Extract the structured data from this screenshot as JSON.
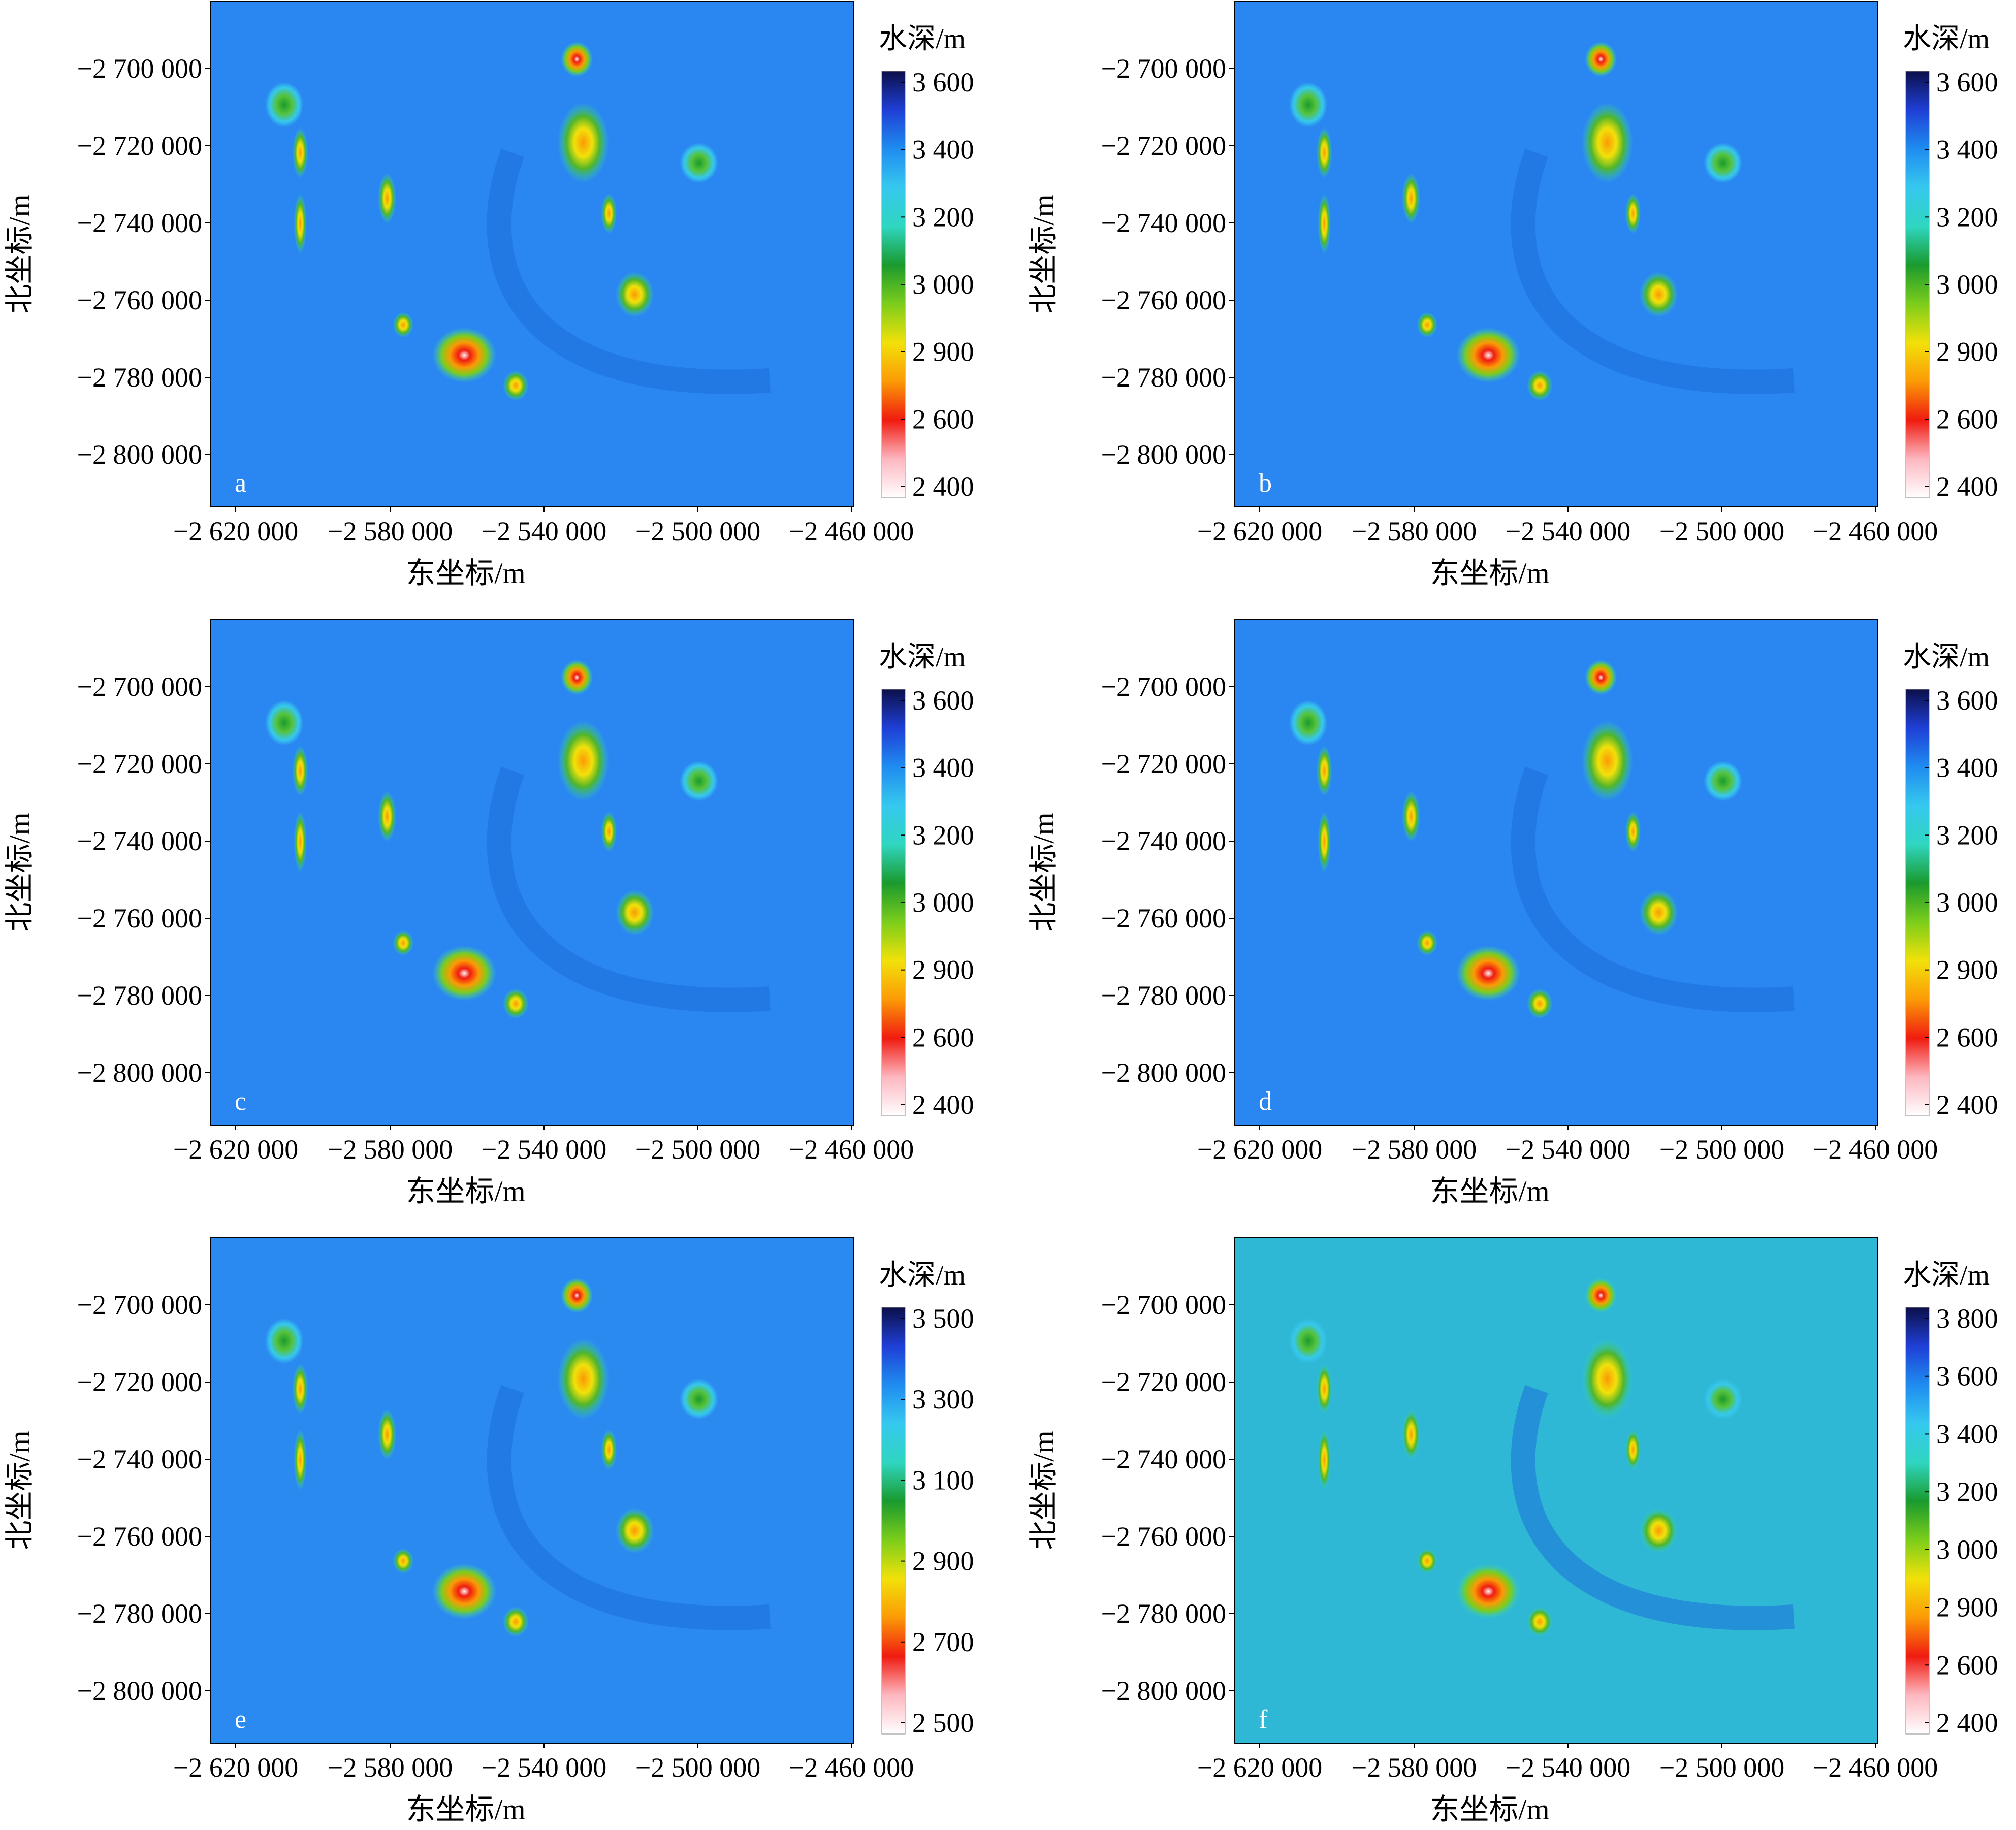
{
  "figure": {
    "xlabel": "东坐标/m",
    "ylabel": "北坐标/m",
    "x_ticks": [
      "−2 620 000",
      "−2 580 000",
      "−2 540 000",
      "−2 500 000",
      "−2 460 000"
    ],
    "y_ticks": [
      "−2 700 000",
      "−2 720 000",
      "−2 740 000",
      "−2 760 000",
      "−2 780 000",
      "−2 800 000"
    ],
    "colorbar_title": "水深/m"
  },
  "chart_data": [
    {
      "type": "heatmap",
      "panel": "a",
      "xlabel": "东坐标/m",
      "ylabel": "北坐标/m",
      "xlim": [
        -2626000,
        -2460000
      ],
      "ylim": [
        -2813000,
        -2683000
      ],
      "colorbar": {
        "title": "水深/m",
        "ticks": [
          "3 600",
          "3 400",
          "3 200",
          "3 000",
          "2 900",
          "2 600",
          "2 400"
        ]
      }
    },
    {
      "type": "heatmap",
      "panel": "b",
      "xlabel": "东坐标/m",
      "ylabel": "北坐标/m",
      "xlim": [
        -2626000,
        -2460000
      ],
      "ylim": [
        -2813000,
        -2683000
      ],
      "colorbar": {
        "title": "水深/m",
        "ticks": [
          "3 600",
          "3 400",
          "3 200",
          "3 000",
          "2 900",
          "2 600",
          "2 400"
        ]
      }
    },
    {
      "type": "heatmap",
      "panel": "c",
      "xlabel": "东坐标/m",
      "ylabel": "北坐标/m",
      "xlim": [
        -2626000,
        -2460000
      ],
      "ylim": [
        -2813000,
        -2683000
      ],
      "colorbar": {
        "title": "水深/m",
        "ticks": [
          "3 600",
          "3 400",
          "3 200",
          "3 000",
          "2 900",
          "2 600",
          "2 400"
        ]
      }
    },
    {
      "type": "heatmap",
      "panel": "d",
      "xlabel": "东坐标/m",
      "ylabel": "北坐标/m",
      "xlim": [
        -2626000,
        -2460000
      ],
      "ylim": [
        -2813000,
        -2683000
      ],
      "colorbar": {
        "title": "水深/m",
        "ticks": [
          "3 600",
          "3 400",
          "3 200",
          "3 000",
          "2 900",
          "2 600",
          "2 400"
        ]
      }
    },
    {
      "type": "heatmap",
      "panel": "e",
      "xlabel": "东坐标/m",
      "ylabel": "北坐标/m",
      "xlim": [
        -2626000,
        -2460000
      ],
      "ylim": [
        -2813000,
        -2683000
      ],
      "colorbar": {
        "title": "水深/m",
        "ticks": [
          "3 500",
          "3 300",
          "3 100",
          "2 900",
          "2 700",
          "2 500"
        ]
      }
    },
    {
      "type": "heatmap",
      "panel": "f",
      "xlabel": "东坐标/m",
      "ylabel": "北坐标/m",
      "xlim": [
        -2626000,
        -2460000
      ],
      "ylim": [
        -2813000,
        -2683000
      ],
      "colorbar": {
        "title": "水深/m",
        "ticks": [
          "3 800",
          "3 600",
          "3 400",
          "3 200",
          "3 000",
          "2 900",
          "2 600",
          "2 400"
        ]
      }
    }
  ],
  "colormap": [
    "#0c0f4a",
    "#1f3fd6",
    "#1f8cf0",
    "#36c8ee",
    "#2fd6c0",
    "#1a9a2e",
    "#7ccd1b",
    "#f2e10a",
    "#fb9a06",
    "#f01b10",
    "#fdb7c0",
    "#ffffff"
  ],
  "background_colors": {
    "a": "#2a86f0",
    "b": "#2a86f0",
    "c": "#2a86f0",
    "d": "#2a86f0",
    "e": "#2b8af0",
    "f": "#2fb8d6"
  }
}
